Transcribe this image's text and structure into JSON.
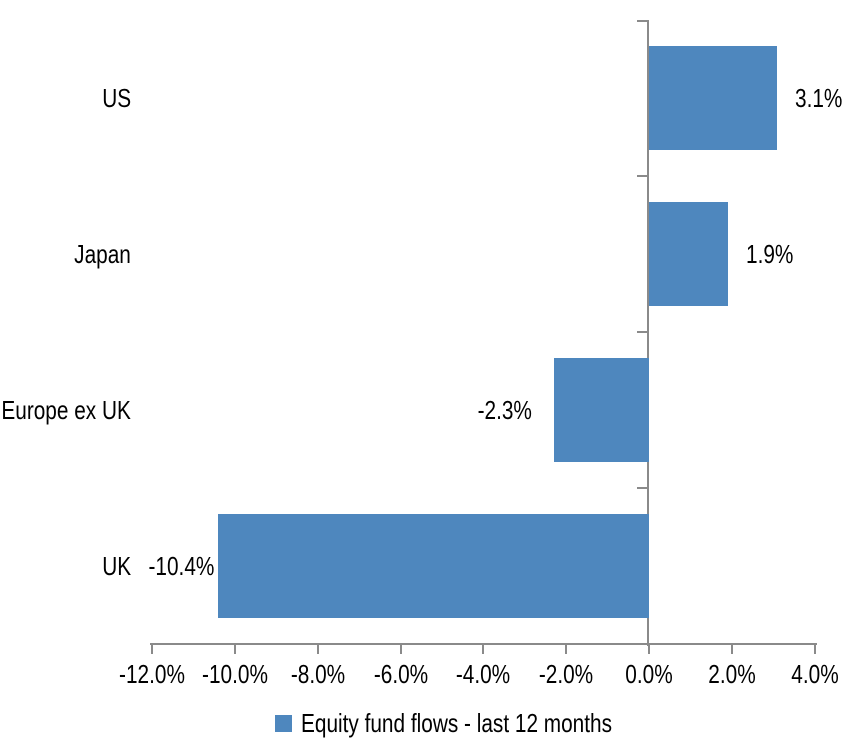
{
  "chart_data": {
    "type": "bar",
    "orientation": "horizontal",
    "title": "",
    "categories": [
      "US",
      "Japan",
      "Europe ex UK",
      "UK"
    ],
    "series": [
      {
        "name": "Equity fund flows - last 12 months",
        "values": [
          3.1,
          1.9,
          -2.3,
          -10.4
        ],
        "value_labels": [
          "3.1%",
          "1.9%",
          "-2.3%",
          "-10.4%"
        ]
      }
    ],
    "xlabel": "",
    "ylabel": "",
    "xlim": [
      -12,
      4
    ],
    "x_tick_step": 2,
    "x_tick_labels": [
      "-12.0%",
      "-10.0%",
      "-8.0%",
      "-6.0%",
      "-4.0%",
      "-2.0%",
      "0.0%",
      "2.0%",
      "4.0%"
    ],
    "grid": false,
    "legend_position": "bottom",
    "colors": {
      "bar": "#4e87be",
      "axis": "#8a8a8a",
      "text": "#000000"
    }
  },
  "legend": {
    "label": "Equity fund flows - last 12 months",
    "swatch_color": "#4e87be"
  }
}
